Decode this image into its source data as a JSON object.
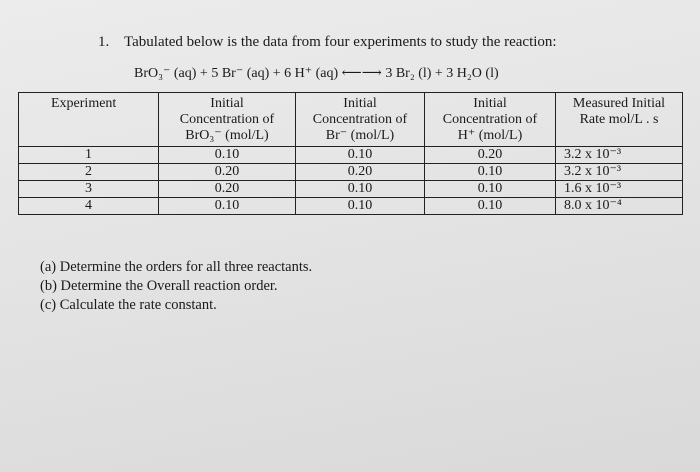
{
  "question": {
    "number": "1.",
    "intro": "Tabulated below is the data from four experiments to study the reaction:",
    "reaction": "BrO₃⁻ (aq) + 5 Br⁻ (aq) + 6 H⁺ (aq) ⟵⟶ 3 Br₂ (l) + 3 H₂O (l)"
  },
  "table": {
    "headers": {
      "experiment": "Experiment",
      "c1_line1": "Initial",
      "c1_line2": "Concentration of",
      "c1_line3": "BrO₃⁻ (mol/L)",
      "c2_line1": "Initial",
      "c2_line2": "Concentration of",
      "c2_line3": "Br⁻ (mol/L)",
      "c3_line1": "Initial",
      "c3_line2": "Concentration of",
      "c3_line3": "H⁺ (mol/L)",
      "rate_line1": "Measured Initial",
      "rate_line2": "Rate mol/L . s"
    },
    "rows": [
      {
        "exp": "1",
        "bro3": "0.10",
        "br": "0.10",
        "h": "0.20",
        "rate": "3.2 x 10⁻³"
      },
      {
        "exp": "2",
        "bro3": "0.20",
        "br": "0.20",
        "h": "0.10",
        "rate": "3.2 x 10⁻³"
      },
      {
        "exp": "3",
        "bro3": "0.20",
        "br": "0.10",
        "h": "0.10",
        "rate": "1.6 x 10⁻³"
      },
      {
        "exp": "4",
        "bro3": "0.10",
        "br": "0.10",
        "h": "0.10",
        "rate": "8.0 x 10⁻⁴"
      }
    ]
  },
  "parts": [
    "(a) Determine the orders for all three reactants.",
    "(b) Determine the Overall reaction order.",
    "(c) Calculate the rate constant."
  ]
}
